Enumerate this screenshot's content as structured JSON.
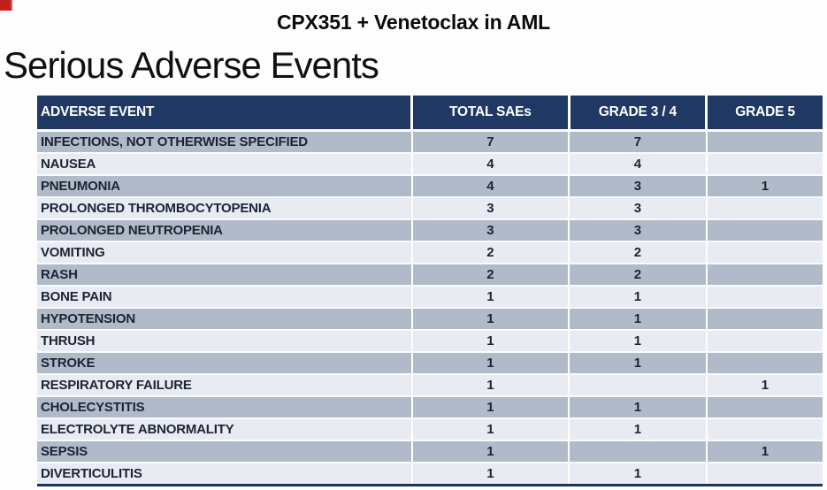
{
  "header": {
    "title": "CPX351 + Venetoclax in AML",
    "heading": "Serious Adverse Events"
  },
  "colors": {
    "header_bg": "#1f3864",
    "row_dark": "#b1bac9",
    "row_light": "#e9ebf2",
    "header_text": "#ffffff",
    "body_text": "#1c2433",
    "badge_red": "#c0201e",
    "table_bottom_border": "#1c3256"
  },
  "icons": {
    "corner_badge": "red-badge-icon"
  },
  "table": {
    "columns": [
      "ADVERSE EVENT",
      "TOTAL SAEs",
      "GRADE 3 / 4",
      "GRADE 5"
    ],
    "rows": [
      [
        "INFECTIONS, NOT OTHERWISE SPECIFIED",
        "7",
        "7",
        ""
      ],
      [
        "NAUSEA",
        "4",
        "4",
        ""
      ],
      [
        "PNEUMONIA",
        "4",
        "3",
        "1"
      ],
      [
        "PROLONGED THROMBOCYTOPENIA",
        "3",
        "3",
        ""
      ],
      [
        "PROLONGED NEUTROPENIA",
        "3",
        "3",
        ""
      ],
      [
        "VOMITING",
        "2",
        "2",
        ""
      ],
      [
        "RASH",
        "2",
        "2",
        ""
      ],
      [
        "BONE PAIN",
        "1",
        "1",
        ""
      ],
      [
        "HYPOTENSION",
        "1",
        "1",
        ""
      ],
      [
        "THRUSH",
        "1",
        "1",
        ""
      ],
      [
        "STROKE",
        "1",
        "1",
        ""
      ],
      [
        "RESPIRATORY FAILURE",
        "1",
        "",
        "1"
      ],
      [
        "CHOLECYSTITIS",
        "1",
        "1",
        ""
      ],
      [
        "ELECTROLYTE ABNORMALITY",
        "1",
        "1",
        ""
      ],
      [
        "SEPSIS",
        "1",
        "",
        "1"
      ],
      [
        "DIVERTICULITIS",
        "1",
        "1",
        ""
      ]
    ]
  }
}
